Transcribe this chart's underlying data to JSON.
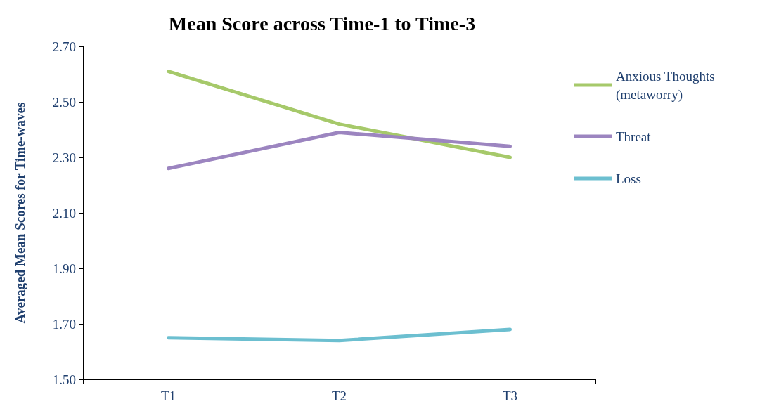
{
  "chart_data": {
    "type": "line",
    "title": "Mean Score across Time-1 to Time-3",
    "ylabel": "Averaged Mean Scores for Time-waves",
    "categories": [
      "T1",
      "T2",
      "T3"
    ],
    "series": [
      {
        "name": "Anxious Thoughts (metaworry)",
        "color": "#a6c96a",
        "values": [
          2.61,
          2.42,
          2.3
        ]
      },
      {
        "name": "Threat",
        "color": "#9c85c0",
        "values": [
          2.26,
          2.39,
          2.34
        ]
      },
      {
        "name": "Loss",
        "color": "#6cbfd0",
        "values": [
          1.65,
          1.64,
          1.68
        ]
      }
    ],
    "ylim": [
      1.5,
      2.7
    ],
    "yticks": [
      {
        "value": 1.5,
        "label": "1.50"
      },
      {
        "value": 1.7,
        "label": "1.70"
      },
      {
        "value": 1.9,
        "label": "1.90"
      },
      {
        "value": 2.1,
        "label": "2.10"
      },
      {
        "value": 2.3,
        "label": "2.30"
      },
      {
        "value": 2.5,
        "label": "2.50"
      },
      {
        "value": 2.7,
        "label": "2.70"
      }
    ],
    "grid": false,
    "legend": "top right",
    "marker": "none",
    "line_style": "solid"
  }
}
